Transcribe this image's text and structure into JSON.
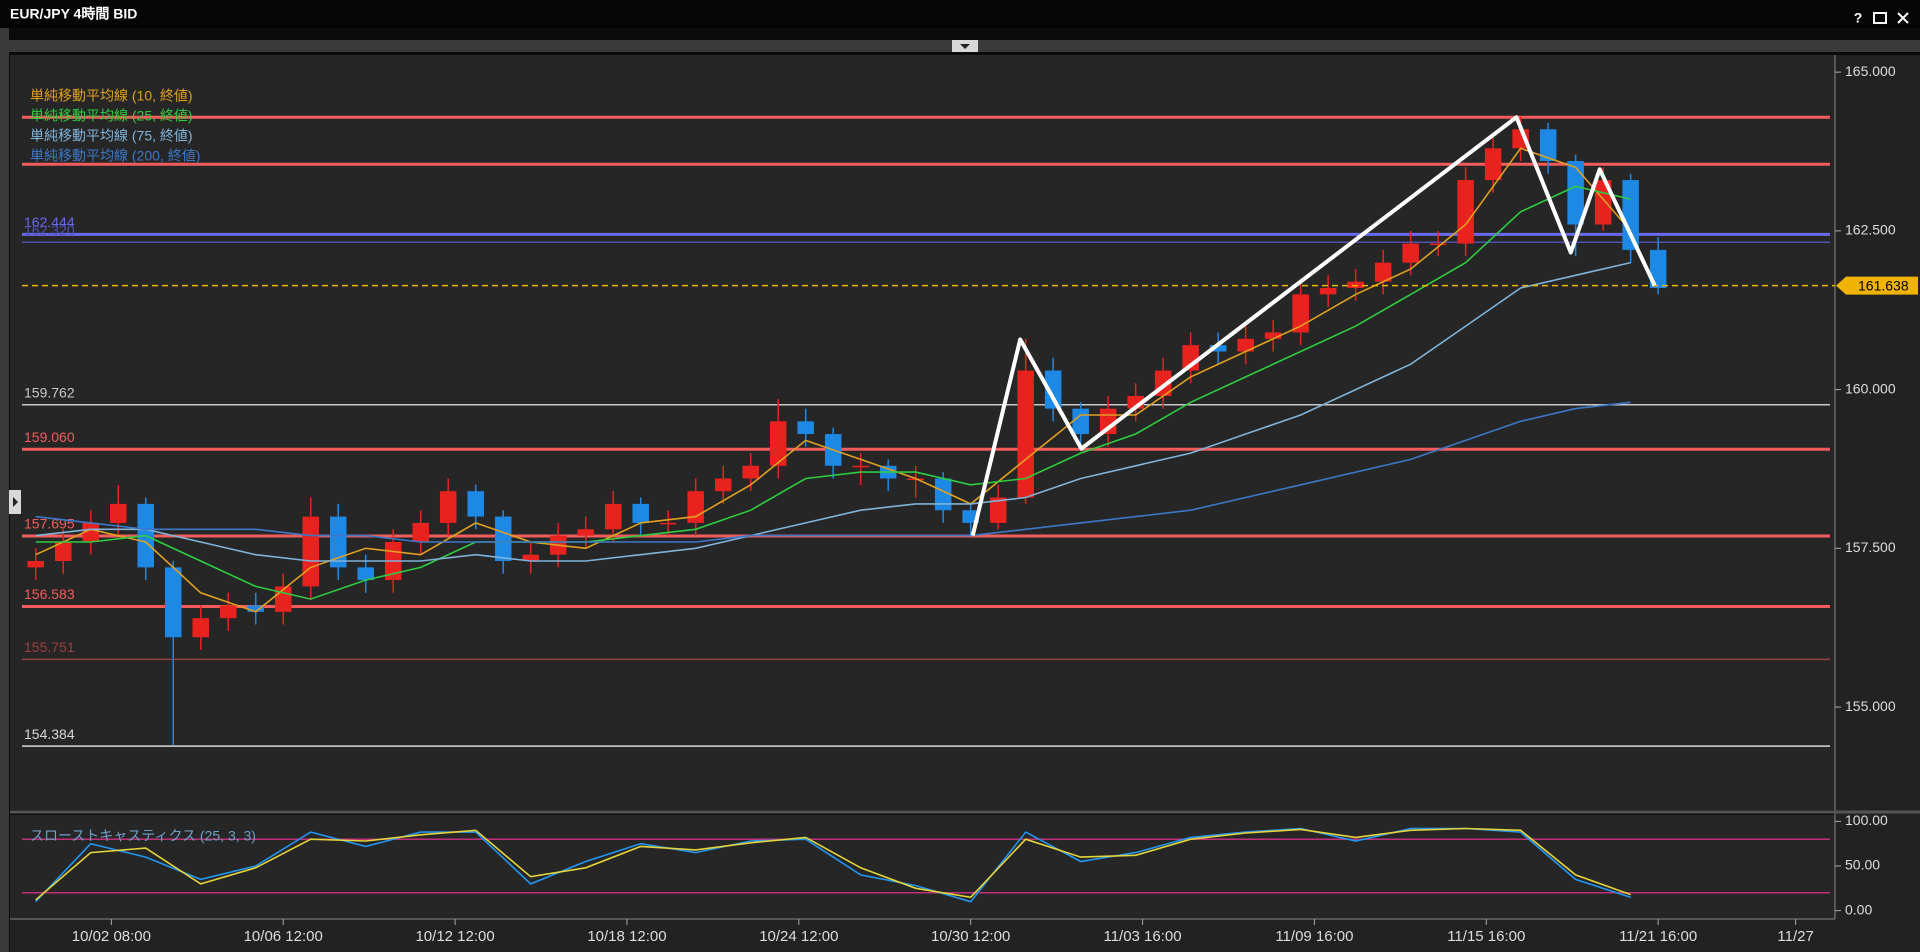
{
  "window": {
    "title": "EUR/JPY 4時間 BID",
    "help": "?"
  },
  "chart_data": [
    {
      "type": "candlestick",
      "x": [
        2,
        6,
        10,
        14,
        18,
        22,
        26,
        30,
        34,
        38,
        42,
        46,
        50,
        54,
        58,
        62,
        66,
        70,
        74,
        78,
        82,
        86,
        90,
        94,
        98,
        102,
        106,
        110,
        114,
        118,
        122,
        126,
        130,
        134,
        138,
        142,
        146,
        150,
        154,
        158,
        162,
        166,
        170,
        174,
        178,
        182,
        186,
        190,
        194,
        198,
        202,
        206,
        210,
        214,
        218,
        222,
        226,
        230,
        234,
        238
      ],
      "open": [
        157.2,
        157.3,
        157.6,
        157.9,
        158.2,
        157.2,
        156.1,
        156.4,
        156.6,
        156.5,
        156.9,
        158.0,
        157.2,
        157.0,
        157.6,
        157.9,
        158.4,
        158.0,
        157.3,
        157.4,
        157.7,
        157.8,
        158.2,
        157.9,
        157.9,
        158.4,
        158.6,
        158.8,
        159.5,
        159.3,
        158.8,
        158.8,
        158.6,
        158.6,
        158.1,
        157.9,
        158.3,
        160.3,
        159.7,
        159.3,
        159.7,
        159.9,
        160.3,
        160.7,
        160.6,
        160.8,
        160.9,
        161.5,
        161.6,
        161.7,
        162.0,
        162.3,
        162.3,
        163.3,
        163.8,
        164.1,
        163.6,
        162.6,
        163.3,
        162.2
      ],
      "high": [
        157.5,
        157.8,
        158.1,
        158.5,
        158.3,
        157.3,
        156.6,
        156.8,
        156.8,
        157.1,
        158.3,
        158.2,
        157.4,
        157.8,
        158.1,
        158.6,
        158.5,
        158.1,
        157.6,
        157.9,
        158.0,
        158.4,
        158.3,
        158.1,
        158.6,
        158.8,
        159.0,
        159.85,
        159.7,
        159.4,
        159.0,
        158.9,
        158.8,
        158.7,
        158.2,
        158.5,
        160.8,
        160.5,
        159.8,
        159.9,
        160.1,
        160.5,
        160.9,
        160.9,
        161.0,
        161.1,
        161.7,
        161.8,
        161.9,
        162.2,
        162.5,
        162.5,
        163.5,
        164.0,
        164.3,
        164.2,
        163.7,
        163.5,
        163.4,
        162.4
      ],
      "low": [
        157.0,
        157.1,
        157.4,
        157.7,
        157.0,
        154.4,
        155.9,
        156.2,
        156.3,
        156.3,
        156.7,
        157.0,
        156.8,
        156.8,
        157.4,
        157.7,
        157.8,
        157.1,
        157.1,
        157.2,
        157.5,
        157.6,
        157.7,
        157.7,
        157.7,
        158.2,
        158.4,
        158.6,
        159.1,
        158.6,
        158.5,
        158.4,
        158.3,
        157.9,
        157.7,
        157.8,
        158.2,
        159.5,
        159.1,
        159.1,
        159.5,
        159.7,
        160.1,
        160.4,
        160.4,
        160.6,
        160.7,
        161.3,
        161.4,
        161.5,
        161.8,
        162.1,
        162.1,
        163.1,
        163.6,
        163.4,
        162.1,
        162.5,
        162.0,
        161.5
      ],
      "close": [
        157.3,
        157.6,
        157.9,
        158.2,
        157.2,
        156.1,
        156.4,
        156.6,
        156.5,
        156.9,
        158.0,
        157.2,
        157.0,
        157.6,
        157.9,
        158.4,
        158.0,
        157.3,
        157.4,
        157.7,
        157.8,
        158.2,
        157.9,
        157.9,
        158.4,
        158.6,
        158.8,
        159.5,
        159.3,
        158.8,
        158.8,
        158.6,
        158.6,
        158.1,
        157.9,
        158.3,
        160.3,
        159.7,
        159.3,
        159.7,
        159.9,
        160.3,
        160.7,
        160.6,
        160.8,
        160.9,
        161.5,
        161.6,
        161.7,
        162.0,
        162.3,
        162.3,
        163.3,
        163.8,
        164.1,
        163.6,
        162.6,
        163.3,
        162.2,
        161.6
      ],
      "up_color": "#e8231f",
      "down_color": "#1e88e5",
      "xlim": [
        0,
        263
      ],
      "xticks": [
        {
          "value": 13,
          "label": "10/02 08:00"
        },
        {
          "value": 38,
          "label": "10/06 12:00"
        },
        {
          "value": 63,
          "label": "10/12 12:00"
        },
        {
          "value": 88,
          "label": "10/18 12:00"
        },
        {
          "value": 113,
          "label": "10/24 12:00"
        },
        {
          "value": 138,
          "label": "10/30 12:00"
        },
        {
          "value": 163,
          "label": "11/03 16:00"
        },
        {
          "value": 188,
          "label": "11/09 16:00"
        },
        {
          "value": 213,
          "label": "11/15 16:00"
        },
        {
          "value": 238,
          "label": "11/21 16:00"
        },
        {
          "value": 258,
          "label": "11/27"
        }
      ],
      "ylim": [
        153.41,
        165.27
      ],
      "yticks": [
        {
          "value": 155,
          "label": "155.000"
        },
        {
          "value": 157.5,
          "label": "157.500"
        },
        {
          "value": 160,
          "label": "160.000"
        },
        {
          "value": 162.5,
          "label": "162.500"
        },
        {
          "value": 165,
          "label": "165.000"
        }
      ],
      "series": [
        {
          "name": "単純移動平均線 (10, 終値)",
          "color": "#e0a020",
          "x": [
            2,
            10,
            18,
            26,
            34,
            42,
            50,
            58,
            66,
            74,
            82,
            90,
            98,
            106,
            114,
            122,
            130,
            138,
            146,
            154,
            162,
            170,
            178,
            186,
            194,
            202,
            210,
            218,
            226,
            234
          ],
          "values": [
            157.4,
            157.8,
            157.6,
            156.8,
            156.5,
            157.2,
            157.5,
            157.4,
            157.9,
            157.6,
            157.5,
            157.9,
            158.0,
            158.5,
            159.2,
            158.9,
            158.6,
            158.2,
            158.9,
            159.6,
            159.6,
            160.2,
            160.6,
            161.0,
            161.5,
            161.9,
            162.6,
            163.8,
            163.5,
            162.5
          ]
        },
        {
          "name": "単純移動平均線 (25, 終値)",
          "color": "#2ecc40",
          "x": [
            2,
            10,
            18,
            26,
            34,
            42,
            50,
            58,
            66,
            74,
            82,
            90,
            98,
            106,
            114,
            122,
            130,
            138,
            146,
            154,
            162,
            170,
            178,
            186,
            194,
            202,
            210,
            218,
            226,
            234
          ],
          "values": [
            157.6,
            157.6,
            157.7,
            157.3,
            156.9,
            156.7,
            157.0,
            157.2,
            157.6,
            157.6,
            157.6,
            157.7,
            157.8,
            158.1,
            158.6,
            158.7,
            158.7,
            158.5,
            158.6,
            159.0,
            159.3,
            159.8,
            160.2,
            160.6,
            161.0,
            161.5,
            162.0,
            162.8,
            163.2,
            163.0
          ]
        },
        {
          "name": "単純移動平均線 (75, 終値)",
          "color": "#7fb3d9",
          "x": [
            2,
            10,
            18,
            26,
            34,
            42,
            50,
            58,
            66,
            74,
            82,
            90,
            98,
            106,
            114,
            122,
            130,
            138,
            146,
            154,
            162,
            170,
            178,
            186,
            194,
            202,
            210,
            218,
            226,
            234
          ],
          "values": [
            157.7,
            157.8,
            157.8,
            157.6,
            157.4,
            157.3,
            157.3,
            157.3,
            157.4,
            157.3,
            157.3,
            157.4,
            157.5,
            157.7,
            157.9,
            158.1,
            158.2,
            158.2,
            158.3,
            158.6,
            158.8,
            159.0,
            159.3,
            159.6,
            160.0,
            160.4,
            161.0,
            161.6,
            161.8,
            162.0
          ]
        },
        {
          "name": "単純移動平均線 (200, 終値)",
          "color": "#3d78c8",
          "x": [
            2,
            10,
            18,
            26,
            34,
            42,
            50,
            58,
            66,
            74,
            82,
            90,
            98,
            106,
            114,
            122,
            130,
            138,
            146,
            154,
            162,
            170,
            178,
            186,
            194,
            202,
            210,
            218,
            226,
            234
          ],
          "values": [
            158.0,
            157.9,
            157.8,
            157.8,
            157.8,
            157.7,
            157.7,
            157.6,
            157.6,
            157.6,
            157.6,
            157.6,
            157.6,
            157.7,
            157.7,
            157.7,
            157.7,
            157.7,
            157.8,
            157.9,
            158.0,
            158.1,
            158.3,
            158.5,
            158.7,
            158.9,
            159.2,
            159.5,
            159.7,
            159.8
          ]
        }
      ],
      "levels": [
        {
          "value": 164.29,
          "color": "#f25c5c"
        },
        {
          "value": 163.55,
          "color": "#f25c5c"
        },
        {
          "value": 162.444,
          "label": "162.444",
          "color": "#6a6af0"
        },
        {
          "value": 162.32,
          "label": "162.320",
          "color": "#5050b0"
        },
        {
          "value": 159.762,
          "label": "159.762",
          "color": "#c8c8c8"
        },
        {
          "value": 159.06,
          "label": "159.060",
          "color": "#f25c5c"
        },
        {
          "value": 157.695,
          "label": "157.695",
          "color": "#f25c5c"
        },
        {
          "value": 156.583,
          "label": "156.583",
          "color": "#f25c5c"
        },
        {
          "value": 155.751,
          "label": "155.751",
          "color": "#9a4040"
        },
        {
          "value": 154.384,
          "label": "154.384",
          "color": "#d8d8d8"
        }
      ],
      "last_price": {
        "value": 161.638,
        "label": "161.638",
        "color": "#f0b400"
      },
      "zigzag": {
        "color": "#ffffff",
        "x": [
          138.3,
          145.2,
          154.1,
          217.4,
          225.3,
          229.5,
          237.5
        ],
        "y": [
          157.7,
          160.79,
          159.07,
          164.29,
          162.16,
          163.47,
          161.64
        ]
      }
    },
    {
      "type": "line",
      "title": "スローストキャスティクス (25, 3, 3)",
      "xlim": [
        0,
        263
      ],
      "ylim": [
        -6,
        106
      ],
      "yticks": [
        {
          "value": 0,
          "label": "0.00"
        },
        {
          "value": 50,
          "label": "50.00"
        },
        {
          "value": 100,
          "label": "100.00"
        }
      ],
      "levels": [
        {
          "value": 80,
          "color": "#c0307a"
        },
        {
          "value": 20,
          "color": "#c0307a"
        }
      ],
      "series": [
        {
          "color": "#2196f3",
          "x": [
            2,
            10,
            18,
            26,
            34,
            42,
            50,
            58,
            66,
            74,
            82,
            90,
            98,
            106,
            114,
            122,
            130,
            138,
            146,
            154,
            162,
            170,
            178,
            186,
            194,
            202,
            210,
            218,
            226,
            234
          ],
          "values": [
            10,
            75,
            60,
            35,
            50,
            88,
            72,
            88,
            88,
            30,
            55,
            75,
            65,
            78,
            80,
            40,
            28,
            10,
            88,
            55,
            65,
            82,
            88,
            92,
            78,
            92,
            92,
            88,
            35,
            15
          ]
        },
        {
          "color": "#e5d33a",
          "x": [
            2,
            10,
            18,
            26,
            34,
            42,
            50,
            58,
            66,
            74,
            82,
            90,
            98,
            106,
            114,
            122,
            130,
            138,
            146,
            154,
            162,
            170,
            178,
            186,
            194,
            202,
            210,
            218,
            226,
            234
          ],
          "values": [
            12,
            65,
            70,
            30,
            48,
            80,
            78,
            85,
            90,
            38,
            48,
            72,
            68,
            76,
            82,
            48,
            25,
            15,
            80,
            60,
            62,
            80,
            87,
            91,
            82,
            90,
            92,
            90,
            40,
            18
          ]
        }
      ]
    }
  ]
}
